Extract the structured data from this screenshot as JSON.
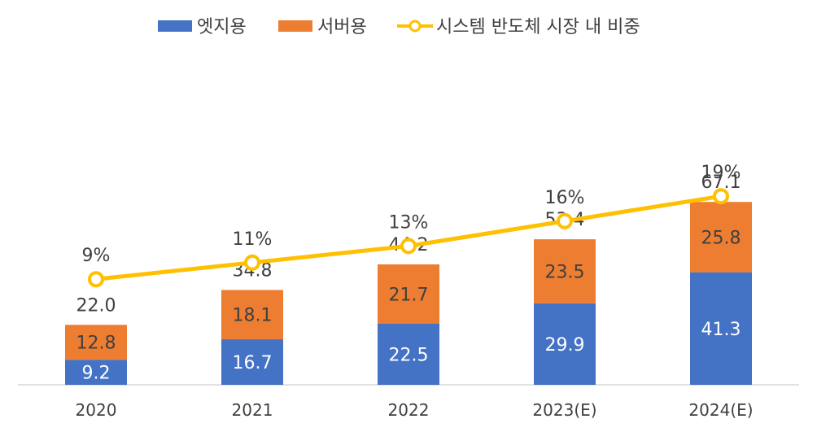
{
  "chart_data": {
    "type": "bar",
    "stacked": true,
    "categories": [
      "2020",
      "2021",
      "2022",
      "2023(E)",
      "2024(E)"
    ],
    "series": [
      {
        "name": "엣지용",
        "type": "bar",
        "color": "#4472C4",
        "values": [
          9.2,
          16.7,
          22.5,
          29.9,
          41.3
        ],
        "labels": [
          "9.2",
          "16.7",
          "22.5",
          "29.9",
          "41.3"
        ]
      },
      {
        "name": "서버용",
        "type": "bar",
        "color": "#ED7D31",
        "values": [
          12.8,
          18.1,
          21.7,
          23.5,
          25.8
        ],
        "labels": [
          "12.8",
          "18.1",
          "21.7",
          "23.5",
          "25.8"
        ]
      },
      {
        "name": "시스템 반도체 시장 내 비중",
        "type": "line",
        "axis": "secondary",
        "color": "#FFC000",
        "values": [
          9,
          11,
          13,
          16,
          19
        ],
        "labels": [
          "9%",
          "11%",
          "13%",
          "16%",
          "19%"
        ]
      }
    ],
    "totals": {
      "values": [
        22.0,
        34.8,
        44.2,
        53.4,
        67.1
      ],
      "labels": [
        "22.0",
        "34.8",
        "44.2",
        "53.4",
        "67.1"
      ]
    },
    "ylim": [
      0,
      80
    ],
    "y2lim": [
      0,
      25
    ],
    "title": "",
    "xlabel": "",
    "ylabel": "",
    "grid": false,
    "legend": "top-center"
  }
}
